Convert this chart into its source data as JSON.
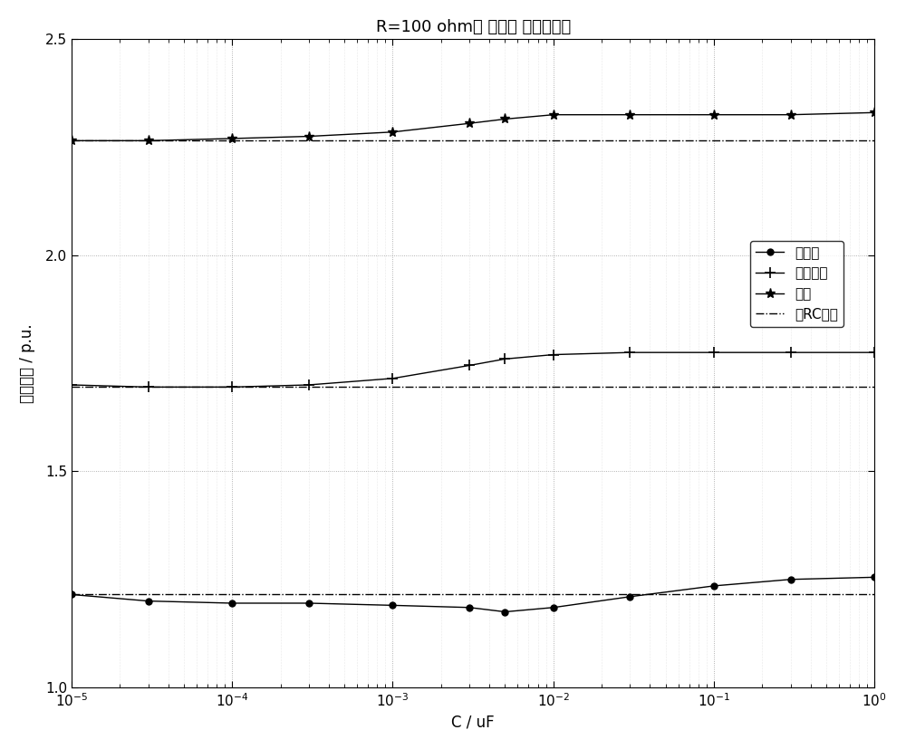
{
  "title": "R=100 ohm， 串联， 接变压器端",
  "xlabel": "C / uF",
  "ylabel": "电压峰値 / p.u.",
  "ylim": [
    1.0,
    2.5
  ],
  "yticks": [
    1.0,
    1.5,
    2.0,
    2.5
  ],
  "C_values": [
    1e-05,
    3e-05,
    0.0001,
    0.0003,
    0.001,
    0.003,
    0.005,
    0.01,
    0.03,
    0.1,
    0.3,
    1.0
  ],
  "transformer_values": [
    1.215,
    1.2,
    1.195,
    1.195,
    1.19,
    1.185,
    1.175,
    1.185,
    1.21,
    1.235,
    1.25,
    1.255
  ],
  "isolator_values": [
    1.7,
    1.695,
    1.695,
    1.7,
    1.715,
    1.745,
    1.76,
    1.77,
    1.775,
    1.775,
    1.775,
    1.775
  ],
  "busbar_values": [
    2.265,
    2.265,
    2.27,
    2.275,
    2.285,
    2.305,
    2.315,
    2.325,
    2.325,
    2.325,
    2.325,
    2.33
  ],
  "no_rc_transformer": 1.215,
  "no_rc_isolator": 1.695,
  "no_rc_busbar": 2.265,
  "line_color": "#000000",
  "background_color": "#ffffff",
  "legend_labels": [
    "变压器",
    "隔离开关",
    "母线",
    "无RC支路"
  ],
  "title_fontsize": 13,
  "label_fontsize": 12,
  "tick_fontsize": 11,
  "legend_fontsize": 11
}
